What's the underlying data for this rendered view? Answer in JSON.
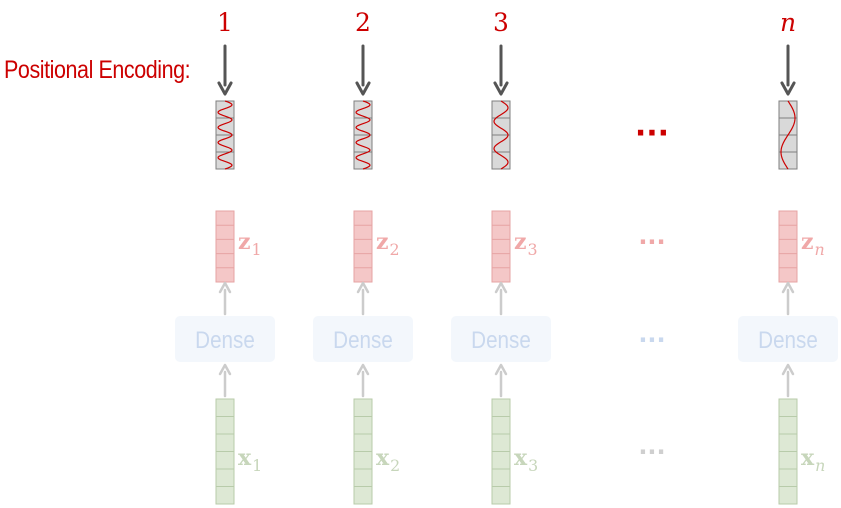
{
  "title": "Positional Encoding:",
  "colors": {
    "accent_red": "#cc0000",
    "dark_arrow": "#555555",
    "pe_fill": "#d9d9d9",
    "pe_stroke": "#7f7f7f",
    "z_fill": "#f4c7c7",
    "z_stroke": "#e6a3a3",
    "z_text": "#f0a8a8",
    "dense_fill": "#f3f7fc",
    "dense_text": "#c9d8ee",
    "x_fill": "#dde8d4",
    "x_stroke": "#b8cbaa",
    "x_text": "#c7d6bb",
    "light_arrow": "#cccccc",
    "ellipsis_blue": "#c9d8ee"
  },
  "columns": [
    {
      "position": "1",
      "z_var": "z",
      "z_sub": "1",
      "dense_label": "Dense",
      "x_var": "x",
      "x_sub": "1",
      "wave_cycles": 4.5
    },
    {
      "position": "2",
      "z_var": "z",
      "z_sub": "2",
      "dense_label": "Dense",
      "x_var": "x",
      "x_sub": "2",
      "wave_cycles": 4.5
    },
    {
      "position": "3",
      "z_var": "z",
      "z_sub": "3",
      "dense_label": "Dense",
      "x_var": "x",
      "x_sub": "3",
      "wave_cycles": 2.5
    },
    {
      "position": "n",
      "z_var": "z",
      "z_sub": "n",
      "dense_label": "Dense",
      "x_var": "x",
      "x_sub": "n",
      "wave_cycles": 1
    }
  ],
  "ellipsis": "···"
}
